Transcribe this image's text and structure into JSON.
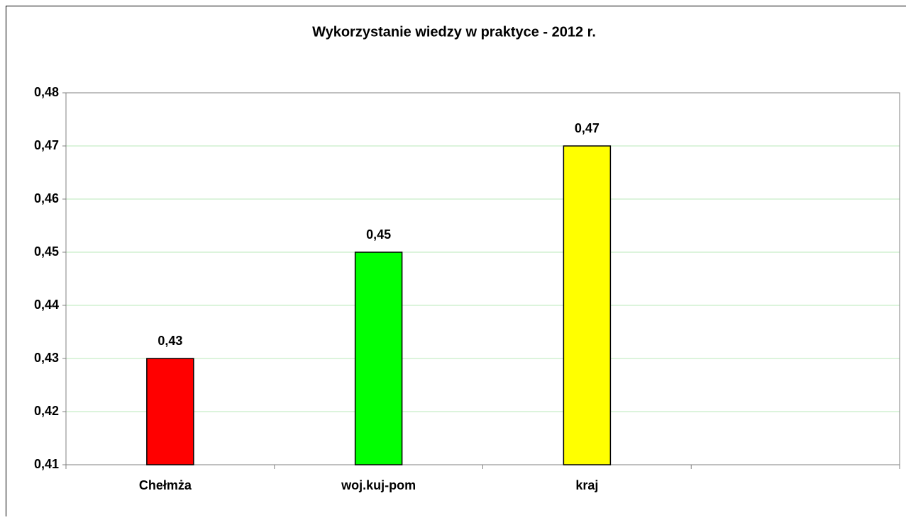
{
  "chart_data": {
    "type": "bar",
    "title": "Wykorzystanie wiedzy w praktyce - 2012 r.",
    "categories": [
      "Chełmża",
      "woj.kuj-pom",
      "kraj",
      null
    ],
    "values": [
      0.43,
      0.45,
      0.47,
      null
    ],
    "value_labels": [
      "0,43",
      "0,45",
      "0,47",
      null
    ],
    "colors": [
      "#ff0000",
      "#00ff00",
      "#ffff00",
      null
    ],
    "ylim": [
      0.41,
      0.48
    ],
    "yticks": [
      {
        "value": 0.41,
        "label": "0,41"
      },
      {
        "value": 0.42,
        "label": "0,42"
      },
      {
        "value": 0.43,
        "label": "0,43"
      },
      {
        "value": 0.44,
        "label": "0,44"
      },
      {
        "value": 0.45,
        "label": "0,45"
      },
      {
        "value": 0.46,
        "label": "0,46"
      },
      {
        "value": 0.47,
        "label": "0,47"
      },
      {
        "value": 0.48,
        "label": "0,48"
      }
    ],
    "grid": true
  }
}
